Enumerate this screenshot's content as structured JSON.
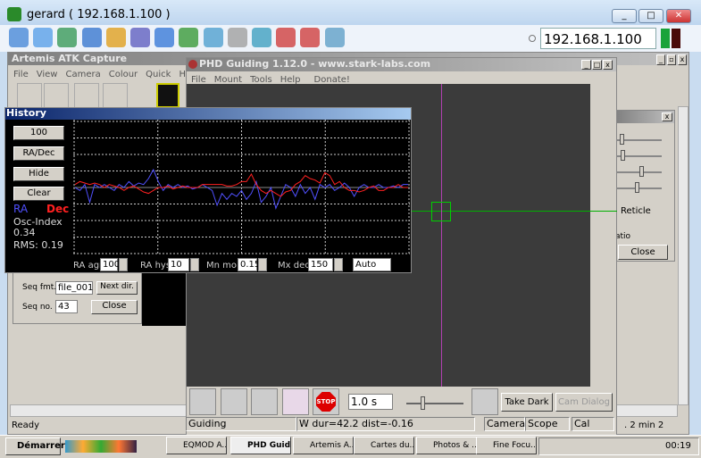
{
  "outer_window": {
    "title": "gerard ( 192.168.1.100 )",
    "ip_address": "192.168.1.100",
    "indicator_colors": [
      "#1aa33a",
      "#5a0a0a"
    ],
    "toolbar_icons": [
      "cad-icon",
      "windows-icon",
      "globe-gear-icon",
      "refresh-icon",
      "windows-flag-icon",
      "abc-icon",
      "thermometer-icon",
      "globe-x-icon",
      "dots-icon",
      "mouse-x-icon",
      "transfer-icon",
      "screen-target-icon",
      "screen-target-2-icon",
      "chat-icon"
    ]
  },
  "artemis": {
    "title": "Artemis ATK Capture",
    "menu": [
      "File",
      "View",
      "Camera",
      "Colour",
      "Quick",
      "Help"
    ],
    "status": "Ready",
    "status_right": ". 2 min 2",
    "seq_fmt_label": "Seq fmt.",
    "seq_fmt_value": "file_001",
    "next_dir": "Next dir.",
    "seq_no_label": "Seq no.",
    "seq_no_value": "43",
    "close": "Close"
  },
  "phd": {
    "title": "PHD Guiding 1.12.0  -  www.stark-labs.com",
    "menu": [
      "File",
      "Mount",
      "Tools",
      "Help",
      "Donate!"
    ],
    "exposure": "1.0 s",
    "take_dark": "Take Dark",
    "cam_dialog": "Cam Dialog",
    "status": {
      "mode": "Guiding",
      "info": "W dur=42.2 dist=-0.16",
      "camera": "Camera",
      "scope": "Scope",
      "cal": "Cal"
    },
    "crosshair_color": "#00c000",
    "reticle_color": "#c040c0"
  },
  "history": {
    "title": "History",
    "btn_length": "100",
    "btn_mode": "RA/Dec",
    "btn_hide": "Hide",
    "btn_clear": "Clear",
    "ra_label": "RA",
    "dec_label": "Dec",
    "osc_label": "Osc-Index",
    "osc_value": "0.34",
    "rms": "RMS: 0.19",
    "ra_agr_label": "RA agr",
    "ra_agr": "100",
    "ra_hys_label": "RA hys",
    "ra_hys": "10",
    "mn_mo_label": "Mn mo",
    "mn_mo": "0.15",
    "mx_dec_label": "Mx dec",
    "mx_dec": "150",
    "mode_select": "Auto"
  },
  "settings_dialog": {
    "reticle": "Reticle",
    "ratio": "atio",
    "close": "Close",
    "slider_levels": [
      0.05,
      0.08,
      0.5,
      0.4
    ]
  },
  "chart_data": {
    "type": "line",
    "series": [
      {
        "name": "RA",
        "color": "#5050ff",
        "values": [
          0,
          -0.1,
          0.1,
          -0.5,
          0.1,
          0,
          0.1,
          0,
          -0.1,
          0.1,
          0,
          0.2,
          0.05,
          0.15,
          0.1,
          0.3,
          0.6,
          0.2,
          -0.1,
          0.1,
          0,
          0.1,
          0,
          0.05,
          -0.05,
          0,
          0.1,
          0,
          -0.1,
          -0.6,
          -0.2,
          -0.4,
          -0.2,
          -0.3,
          -0.1,
          -0.4,
          -0.2,
          0.2,
          -0.5,
          -0.3,
          0,
          -0.7,
          -0.3,
          0.1,
          0,
          -0.3,
          0.1,
          -0.2,
          0,
          -0.4,
          0.1,
          0,
          0.1,
          -0.1,
          0,
          0.15,
          0,
          -0.3,
          0,
          0.1,
          0,
          0,
          0.1,
          0,
          0,
          0.05,
          0,
          0.1,
          0.1
        ]
      },
      {
        "name": "Dec",
        "color": "#ff2020",
        "values": [
          0.1,
          0.2,
          0.15,
          0.1,
          0.15,
          0.1,
          0,
          0.1,
          0.05,
          0,
          -0.1,
          0,
          0.05,
          -0.05,
          -0.15,
          -0.2,
          -0.1,
          0,
          0,
          0.05,
          -0.05,
          0,
          0.05,
          0,
          0,
          0,
          0.1,
          0.1,
          0.1,
          0.1,
          0.1,
          0.05,
          0.05,
          0.1,
          0.2,
          0.2,
          0.45,
          0.1,
          -0.1,
          -0.2,
          -0.1,
          -0.2,
          -0.3,
          -0.15,
          -0.1,
          0.1,
          0.2,
          0.4,
          0.3,
          0.25,
          0.15,
          0.5,
          0.4,
          0.1,
          0.2,
          0,
          -0.1,
          -0.1,
          -0.15,
          -0.1,
          0,
          0.05,
          -0.1,
          -0.1,
          0,
          0,
          0.1,
          0,
          0
        ]
      }
    ]
  },
  "taskbar": {
    "start": "Démarrer",
    "items": [
      "EQMOD A...",
      "PHD Guid...",
      "Artemis A...",
      "Cartes du...",
      "Photos & ...",
      "Fine Focu..."
    ],
    "clock": "00:19"
  }
}
